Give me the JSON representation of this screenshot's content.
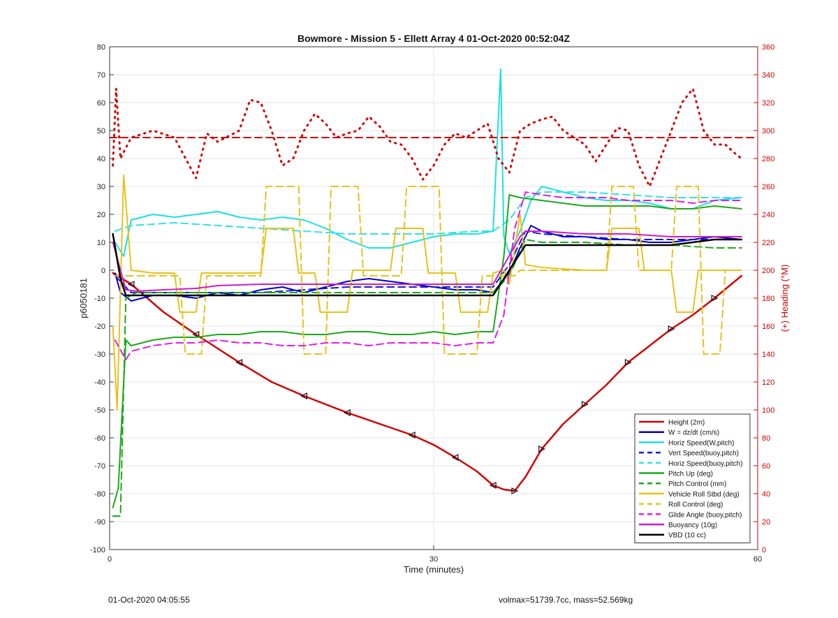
{
  "chart_data": {
    "type": "line",
    "title": "Bowmore - Mission 5 - Ellett Array 4 01-Oct-2020 00:52:04Z",
    "xlabel": "Time (minutes)",
    "ylabel": "p6050181",
    "y2label": "(+) Heading (°M)",
    "xlim": [
      0,
      60
    ],
    "ylim": [
      -100,
      80
    ],
    "y2lim": [
      0,
      360
    ],
    "xticks": [
      "0",
      "30",
      "60"
    ],
    "yticks": [
      "-100",
      "-90",
      "-80",
      "-70",
      "-60",
      "-50",
      "-40",
      "-30",
      "-20",
      "-10",
      "0",
      "10",
      "20",
      "30",
      "40",
      "50",
      "60",
      "70",
      "80"
    ],
    "y2ticks": [
      "0",
      "20",
      "40",
      "60",
      "80",
      "100",
      "120",
      "140",
      "160",
      "180",
      "200",
      "220",
      "240",
      "260",
      "280",
      "300",
      "320",
      "340",
      "360"
    ],
    "grid": "major x/y at labeled ticks",
    "legend_position": "bottom-right",
    "colors": {
      "right_axis": "#cc0000"
    },
    "series": [
      {
        "name": "Height (2m)",
        "color": "#d00000",
        "style": "solid",
        "x": [
          0.3,
          2,
          5,
          8,
          10,
          12,
          15,
          18,
          20,
          22,
          25,
          28,
          30,
          32,
          34,
          35.5,
          36.5,
          37.5,
          38.5,
          40,
          42,
          44,
          46,
          48,
          50,
          52,
          54,
          56,
          58.5
        ],
        "values": [
          -1,
          -5,
          -15,
          -23,
          -28,
          -33,
          -40,
          -45,
          -48,
          -51,
          -55,
          -59,
          -62.5,
          -67,
          -72,
          -77,
          -78.5,
          -79,
          -74,
          -64,
          -55,
          -48,
          -41,
          -33,
          -27,
          -21,
          -16,
          -10,
          -2
        ]
      },
      {
        "name": "W = dz/dt (cm/s)",
        "color": "#0000cc",
        "style": "solid",
        "x": [
          0.5,
          1,
          2,
          4,
          6,
          8,
          10,
          12,
          14,
          16,
          18,
          20,
          22,
          24,
          26,
          28,
          30,
          32,
          34,
          35.5,
          37,
          38,
          39,
          40,
          42,
          44,
          46,
          48,
          50,
          52,
          54,
          56,
          58.5
        ],
        "values": [
          -1,
          -8,
          -11,
          -9,
          -9,
          -10,
          -8,
          -9,
          -7,
          -6,
          -8,
          -6,
          -4,
          -3,
          -4,
          -5,
          -6,
          -7,
          -7,
          -8,
          -1,
          8,
          16,
          14,
          12,
          12,
          11,
          11,
          10,
          10,
          11,
          12,
          11
        ]
      },
      {
        "name": "Horiz Speed(W,pitch)",
        "color": "#1ae0e6",
        "style": "solid",
        "x": [
          0.5,
          1.3,
          2,
          4,
          6,
          8,
          10,
          12,
          14,
          16,
          18,
          20,
          22,
          24,
          26,
          28,
          30,
          32,
          34,
          35.5,
          36.2,
          36.5,
          37,
          38,
          39,
          40,
          42,
          44,
          46,
          48,
          50,
          52,
          54,
          56,
          58.5
        ],
        "values": [
          10,
          5,
          18,
          20,
          19,
          20,
          21,
          19,
          18,
          19,
          18,
          15,
          11,
          8,
          8,
          10,
          12,
          13,
          13,
          14,
          72,
          12,
          6,
          14,
          25,
          30,
          28,
          26,
          25,
          25,
          24,
          22,
          22,
          25,
          26
        ]
      },
      {
        "name": "Vert Speed(buoy,pitch)",
        "color": "#1a1acc",
        "style": "dashed",
        "x": [
          0.5,
          2,
          6,
          10,
          14,
          18,
          22,
          26,
          30,
          34,
          35.5,
          37,
          38.5,
          40,
          44,
          48,
          52,
          56,
          58.5
        ],
        "values": [
          -2,
          -8,
          -8,
          -8,
          -8,
          -7,
          -6,
          -6,
          -6,
          -6,
          -6,
          2,
          14,
          13,
          12,
          11,
          11,
          11,
          11
        ]
      },
      {
        "name": "Horiz Speed(buoy,pitch)",
        "color": "#33e0e6",
        "style": "dashed",
        "x": [
          0.5,
          2,
          6,
          10,
          14,
          18,
          22,
          26,
          30,
          34,
          35.5,
          37,
          38.5,
          40,
          44,
          48,
          52,
          56,
          58.5
        ],
        "values": [
          14,
          16,
          17,
          16,
          15,
          14,
          13,
          13,
          13,
          14,
          14,
          18,
          26,
          28,
          28,
          27,
          26,
          26,
          26
        ]
      },
      {
        "name": "Pitch Up (deg)",
        "color": "#1aa81a",
        "style": "solid",
        "x": [
          0.3,
          0.8,
          1.5,
          2,
          4,
          6,
          8,
          10,
          12,
          14,
          16,
          18,
          20,
          22,
          24,
          26,
          28,
          30,
          32,
          34,
          35.5,
          36.5,
          37,
          38,
          40,
          42,
          44,
          46,
          48,
          50,
          52,
          54,
          56,
          58.5
        ],
        "values": [
          -85,
          -78,
          -25,
          -27,
          -25,
          -24,
          -24,
          -23,
          -23,
          -22,
          -22,
          -23,
          -23,
          -22,
          -22,
          -23,
          -23,
          -22,
          -23,
          -22,
          -22,
          5,
          27,
          26,
          25,
          24,
          23,
          23,
          23,
          23,
          22,
          22,
          23,
          22
        ]
      },
      {
        "name": "Pitch Control (mm)",
        "color": "#1aa81a",
        "style": "dashed",
        "x": [
          0.3,
          1,
          1.5,
          2.5,
          6,
          10,
          14,
          18,
          22,
          26,
          30,
          34,
          35.5,
          37,
          38.5,
          40,
          44,
          48,
          52,
          56,
          58.5
        ],
        "values": [
          -88,
          -88,
          -10,
          -8,
          -8,
          -8,
          -8,
          -8,
          -8,
          -8,
          -8,
          -8,
          -8,
          -2,
          11,
          10,
          10,
          9,
          9,
          8,
          8
        ]
      },
      {
        "name": "Vehicle Roll Stbd (deg)",
        "color": "#e6c21a",
        "style": "solid",
        "x": [
          0.3,
          0.7,
          1.3,
          2,
          4,
          6,
          6.5,
          8,
          8.5,
          11,
          11.5,
          14,
          14.5,
          17,
          17.5,
          19,
          19.5,
          22,
          22.5,
          26,
          26.5,
          29,
          29.5,
          32,
          32.5,
          35,
          35.5,
          36.5,
          37,
          38,
          38.5,
          40,
          44,
          46,
          46.5,
          49,
          49.5,
          52,
          52.5,
          54,
          54.5,
          56,
          56.5,
          58.5
        ],
        "values": [
          -20,
          -50,
          34,
          0,
          -1,
          -1,
          -15,
          -15,
          -1,
          -1,
          -1,
          -1,
          15,
          15,
          -1,
          -1,
          -15,
          -15,
          0,
          0,
          15,
          15,
          -1,
          -1,
          -15,
          -15,
          -1,
          0,
          -5,
          20,
          2,
          1,
          0,
          0,
          15,
          15,
          0,
          0,
          -15,
          -15,
          0,
          0,
          0,
          0
        ]
      },
      {
        "name": "Roll Control (deg)",
        "color": "#e6c21a",
        "style": "dashed",
        "x": [
          0.5,
          6.5,
          7,
          8.5,
          9,
          14,
          14.5,
          17.5,
          18,
          20,
          20.5,
          23,
          23.5,
          27,
          27.5,
          30.5,
          31,
          34,
          34.5,
          37.5,
          38,
          46,
          46.5,
          48.5,
          49,
          52,
          52.5,
          54.5,
          55,
          56.5,
          57,
          58.5
        ],
        "values": [
          -2,
          -2,
          -30,
          -30,
          -2,
          -2,
          30,
          30,
          -30,
          -30,
          30,
          30,
          -2,
          -2,
          30,
          30,
          -30,
          -30,
          -2,
          -2,
          0,
          0,
          30,
          30,
          0,
          0,
          30,
          30,
          -30,
          -30,
          0,
          0
        ]
      },
      {
        "name": "Glide Angle (buoy,pitch)",
        "color": "#e61ae6",
        "style": "dashed",
        "x": [
          0.5,
          1.5,
          2,
          4,
          6,
          8,
          10,
          12,
          14,
          16,
          18,
          20,
          22,
          24,
          26,
          28,
          30,
          32,
          34,
          35.5,
          36.5,
          37.5,
          38.5,
          40,
          42,
          44,
          46,
          48,
          50,
          52,
          54,
          56,
          58.5
        ],
        "values": [
          -25,
          -32,
          -29,
          -27,
          -26,
          -26,
          -25,
          -26,
          -26,
          -27,
          -27,
          -26,
          -26,
          -27,
          -26,
          -26,
          -26,
          -27,
          -26,
          -26,
          -16,
          15,
          28,
          27,
          26,
          26,
          26,
          25,
          25,
          25,
          24,
          25,
          25
        ]
      },
      {
        "name": "Buoyancy (10g)",
        "color": "#cc1acc",
        "style": "solid",
        "x": [
          0.3,
          1.5,
          2.5,
          5,
          8,
          10,
          14,
          18,
          22,
          26,
          30,
          34,
          35.5,
          38,
          38.5,
          40,
          44,
          48,
          52,
          56,
          58.5
        ],
        "values": [
          10,
          -7,
          -7.5,
          -7,
          -6.5,
          -5.5,
          -5,
          -5,
          -5,
          -5,
          -5,
          -5,
          -5,
          12,
          14,
          14,
          13,
          13,
          12,
          12,
          12
        ]
      },
      {
        "name": "VBD (10 cc)",
        "color": "#000000",
        "style": "solid",
        "x": [
          0.3,
          1,
          1.5,
          4,
          8,
          14,
          20,
          26,
          30,
          35.5,
          38.5,
          40,
          44,
          48,
          52,
          56,
          58.5
        ],
        "values": [
          13,
          -3,
          -9,
          -9,
          -9,
          -9,
          -9,
          -9,
          -9,
          -9,
          9,
          9,
          9,
          9,
          9,
          11,
          11
        ]
      },
      {
        "name": "(+) Heading (°M)",
        "color": "#d00000",
        "style": "dotted",
        "axis": "right",
        "x": [
          0.3,
          0.6,
          1,
          2,
          4,
          6,
          8,
          9,
          10,
          12,
          13,
          14,
          15,
          16,
          17,
          18,
          19,
          20,
          21,
          22,
          23,
          24,
          25,
          26,
          27,
          28,
          29,
          30,
          31,
          32,
          33,
          34,
          35,
          36,
          37,
          38,
          39,
          40,
          41,
          42,
          43,
          44,
          45,
          46,
          47,
          48,
          49,
          50,
          51,
          52,
          53,
          54,
          55,
          56,
          57,
          58,
          58.5
        ],
        "values": [
          275,
          330,
          280,
          295,
          300,
          295,
          266,
          298,
          292,
          300,
          322,
          320,
          300,
          275,
          280,
          300,
          312,
          305,
          295,
          298,
          300,
          310,
          303,
          292,
          290,
          280,
          265,
          275,
          290,
          298,
          295,
          300,
          305,
          280,
          270,
          300,
          305,
          308,
          310,
          300,
          295,
          290,
          278,
          290,
          302,
          300,
          275,
          260,
          280,
          300,
          320,
          330,
          300,
          290,
          290,
          283,
          280
        ]
      },
      {
        "name": "",
        "color": "#d00000",
        "style": "dashed",
        "axis": "right",
        "x": [
          0,
          60
        ],
        "values": [
          295,
          295
        ]
      }
    ]
  },
  "footer": {
    "left": "01-Oct-2020 04:05:55",
    "right": "volmax=51739.7cc, mass=52.569kg"
  }
}
